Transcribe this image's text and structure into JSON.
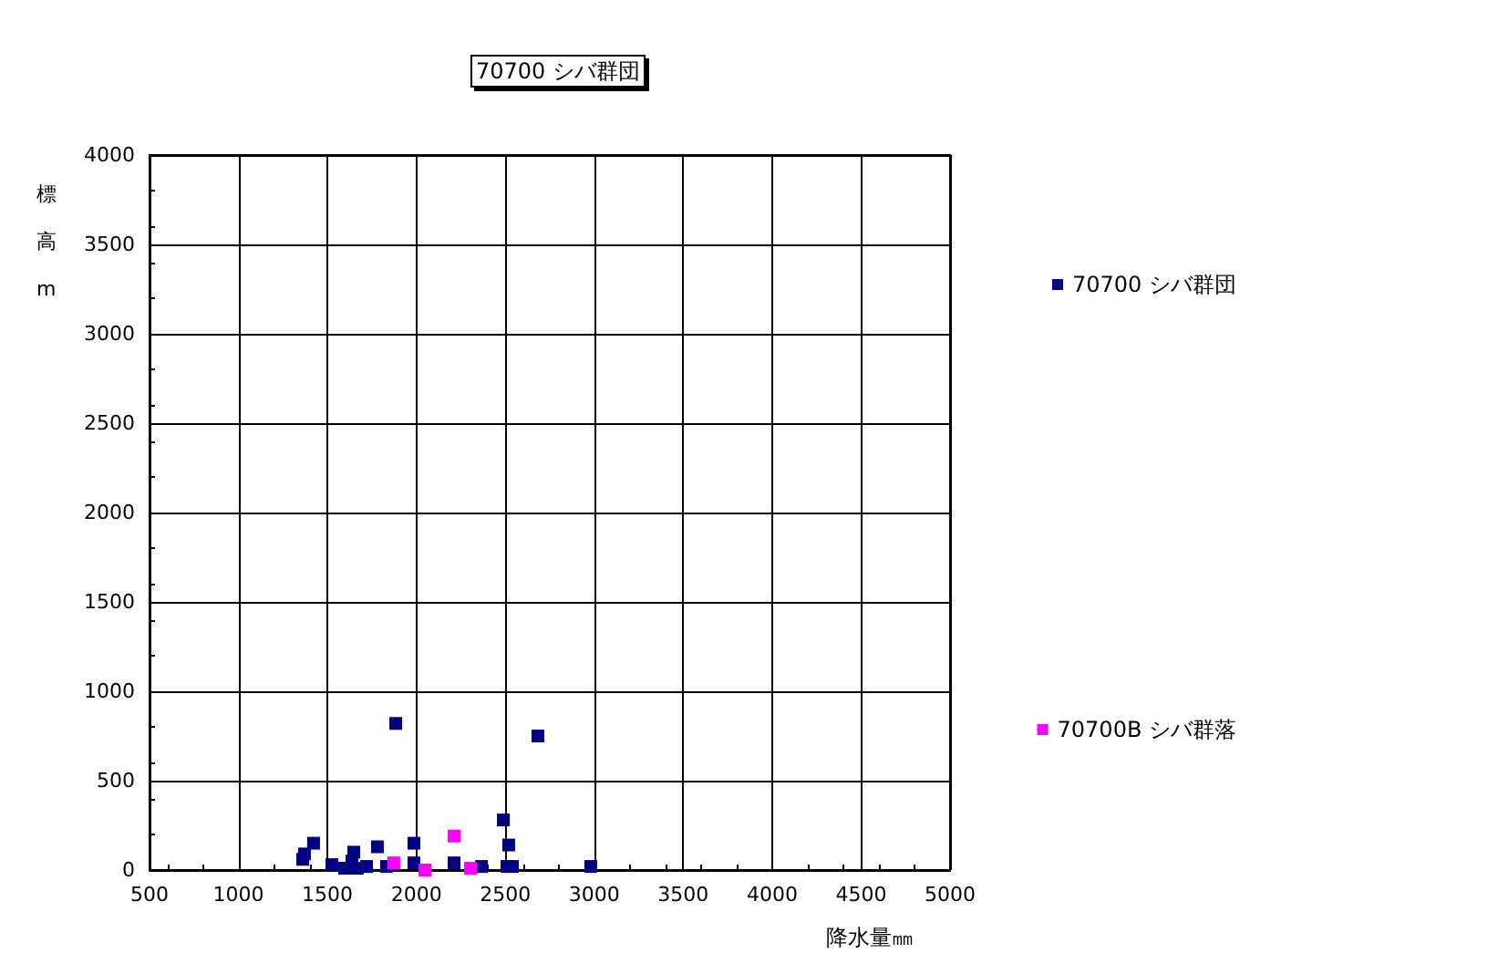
{
  "chart_data": {
    "type": "scatter",
    "title": "70700 シバ群団",
    "xlabel": "降水量㎜",
    "ylabel": "標高m",
    "xlim": [
      500,
      5000
    ],
    "xticks": [
      500,
      1000,
      1500,
      2000,
      2500,
      3000,
      3500,
      4000,
      4500,
      5000
    ],
    "ylim": [
      0,
      4000
    ],
    "yticks": [
      0,
      500,
      1000,
      1500,
      2000,
      2500,
      3000,
      3500,
      4000
    ],
    "grid": true,
    "legend": "right",
    "marker": "square",
    "series": [
      {
        "name": "70700 シバ群団",
        "color": "#000080",
        "x": [
          1361,
          1371,
          1422,
          1525,
          1597,
          1638,
          1648,
          1668,
          1720,
          1781,
          1832,
          1884,
          1986,
          1986,
          2212,
          2366,
          2489,
          2519,
          2509,
          2540,
          2683,
          2980
        ],
        "values": [
          60,
          90,
          150,
          30,
          10,
          50,
          100,
          10,
          20,
          130,
          20,
          820,
          150,
          40,
          40,
          20,
          280,
          140,
          20,
          20,
          750,
          20
        ]
      },
      {
        "name": "70700B シバ群落",
        "color": "#ff00ff",
        "x": [
          1873,
          2048,
          2212,
          2304
        ],
        "values": [
          40,
          0,
          190,
          10
        ]
      }
    ]
  }
}
